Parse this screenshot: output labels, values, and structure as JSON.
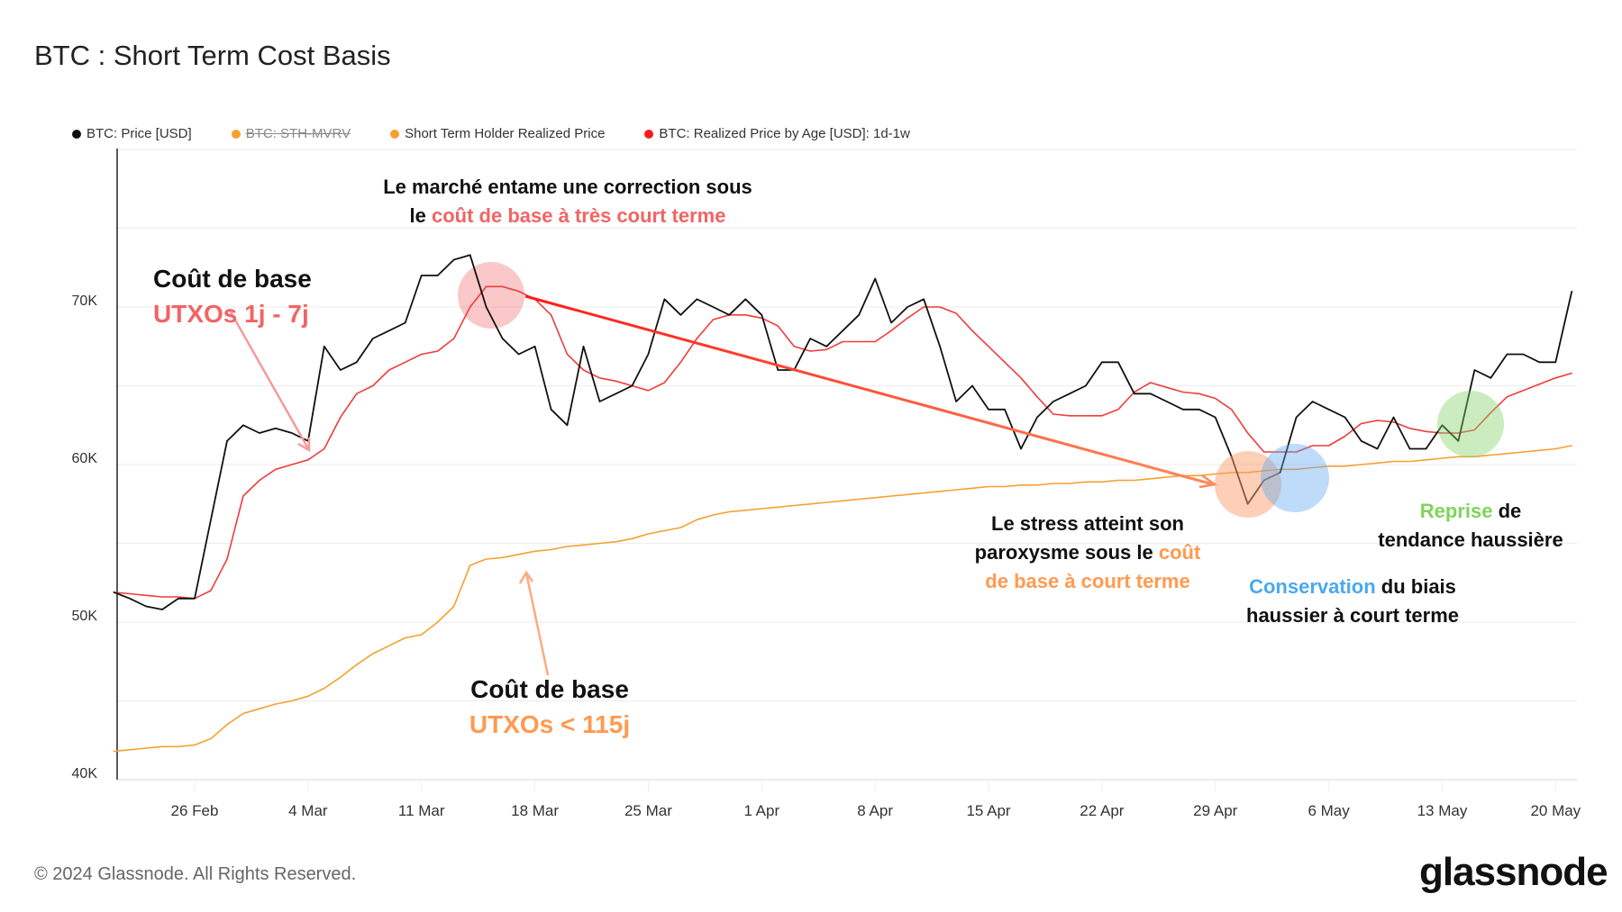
{
  "title": "BTC : Short Term Cost Basis",
  "legend": [
    {
      "label": "BTC: Price [USD]",
      "color": "#111111",
      "active": true
    },
    {
      "label": "BTC: STH-MVRV",
      "color": "#f5a030",
      "active": false
    },
    {
      "label": "Short Term Holder Realized Price",
      "color": "#f5a030",
      "active": true
    },
    {
      "label": "BTC: Realized Price by Age [USD]: 1d-1w",
      "color": "#ff1a1a",
      "active": true
    }
  ],
  "annotations": {
    "top_line1": "Le marché entame une correction sous",
    "top_line2_a": "le ",
    "top_line2_b": "coût de base à très court terme",
    "left_title": "Coût de base",
    "left_sub": "UTXOs 1j - 7j",
    "bottom_title": "Coût de base",
    "bottom_sub": "UTXOs < 115j",
    "stress_l1": "Le stress atteint son",
    "stress_l2_a": "paroxysme sous le ",
    "stress_l2_b": "coût",
    "stress_l3": "de base à court terme",
    "cons_a": "Conservation",
    "cons_b": " du biais",
    "cons_l2": "haussier à court terme",
    "rep_a": "Reprise",
    "rep_b": " de",
    "rep_l2": "tendance haussière",
    "colors": {
      "red": "#f26464",
      "orange": "#ff9a50",
      "blue": "#4aa8f0",
      "green": "#7fd35a"
    }
  },
  "footer": "© 2024 Glassnode. All Rights Reserved.",
  "logo": "glassnode",
  "chart_data": {
    "type": "line",
    "title": "BTC : Short Term Cost Basis",
    "ylim": [
      40000,
      80000
    ],
    "yticks": [
      "40K",
      "50K",
      "60K",
      "70K"
    ],
    "xticks": [
      "26 Feb",
      "4 Mar",
      "11 Mar",
      "18 Mar",
      "25 Mar",
      "1 Apr",
      "8 Apr",
      "15 Apr",
      "22 Apr",
      "29 Apr",
      "6 May",
      "13 May",
      "20 May"
    ],
    "grid": true,
    "legend_position": "top-left",
    "x": [
      "Feb 21",
      "Feb 22",
      "Feb 23",
      "Feb 24",
      "Feb 25",
      "Feb 26",
      "Feb 27",
      "Feb 28",
      "Feb 29",
      "Mar 1",
      "Mar 2",
      "Mar 3",
      "Mar 4",
      "Mar 5",
      "Mar 6",
      "Mar 7",
      "Mar 8",
      "Mar 9",
      "Mar 10",
      "Mar 11",
      "Mar 12",
      "Mar 13",
      "Mar 14",
      "Mar 15",
      "Mar 16",
      "Mar 17",
      "Mar 18",
      "Mar 19",
      "Mar 20",
      "Mar 21",
      "Mar 22",
      "Mar 23",
      "Mar 24",
      "Mar 25",
      "Mar 26",
      "Mar 27",
      "Mar 28",
      "Mar 29",
      "Mar 30",
      "Mar 31",
      "Apr 1",
      "Apr 2",
      "Apr 3",
      "Apr 4",
      "Apr 5",
      "Apr 6",
      "Apr 7",
      "Apr 8",
      "Apr 9",
      "Apr 10",
      "Apr 11",
      "Apr 12",
      "Apr 13",
      "Apr 14",
      "Apr 15",
      "Apr 16",
      "Apr 17",
      "Apr 18",
      "Apr 19",
      "Apr 20",
      "Apr 21",
      "Apr 22",
      "Apr 23",
      "Apr 24",
      "Apr 25",
      "Apr 26",
      "Apr 27",
      "Apr 28",
      "Apr 29",
      "Apr 30",
      "May 1",
      "May 2",
      "May 3",
      "May 4",
      "May 5",
      "May 6",
      "May 7",
      "May 8",
      "May 9",
      "May 10",
      "May 11",
      "May 12",
      "May 13",
      "May 14",
      "May 15",
      "May 16",
      "May 17",
      "May 18",
      "May 19",
      "May 20",
      "May 21"
    ],
    "series": [
      {
        "name": "Short Term Holder Realized Price",
        "color": "#f5a030",
        "values": [
          41800,
          41900,
          42000,
          42100,
          42100,
          42200,
          42600,
          43500,
          44200,
          44500,
          44800,
          45000,
          45300,
          45800,
          46500,
          47300,
          48000,
          48500,
          49000,
          49200,
          50000,
          51000,
          53600,
          54000,
          54100,
          54300,
          54500,
          54600,
          54800,
          54900,
          55000,
          55100,
          55300,
          55600,
          55800,
          56000,
          56500,
          56800,
          57000,
          57100,
          57200,
          57300,
          57400,
          57500,
          57600,
          57700,
          57800,
          57900,
          58000,
          58100,
          58200,
          58300,
          58400,
          58500,
          58600,
          58600,
          58700,
          58700,
          58800,
          58800,
          58900,
          58900,
          59000,
          59000,
          59100,
          59200,
          59300,
          59300,
          59400,
          59500,
          59500,
          59600,
          59700,
          59700,
          59800,
          59900,
          59900,
          60000,
          60100,
          60200,
          60200,
          60300,
          60400,
          60500,
          60500,
          60600,
          60700,
          60800,
          60900,
          61000,
          61200
        ]
      },
      {
        "name": "BTC: Realized Price by Age [USD]: 1d-1w",
        "color": "#f03c3c",
        "values": [
          51900,
          51800,
          51700,
          51600,
          51600,
          51500,
          52000,
          54000,
          58000,
          59000,
          59700,
          60000,
          60300,
          61000,
          63000,
          64500,
          65000,
          66000,
          66500,
          67000,
          67200,
          68000,
          70000,
          71300,
          71300,
          71000,
          70500,
          69500,
          67000,
          66000,
          65500,
          65300,
          65000,
          64700,
          65200,
          66500,
          68000,
          69200,
          69500,
          69500,
          69300,
          68800,
          67500,
          67200,
          67300,
          67800,
          67800,
          67800,
          68500,
          69300,
          70000,
          70000,
          69600,
          68500,
          67500,
          66500,
          65500,
          64300,
          63200,
          63100,
          63100,
          63100,
          63500,
          64600,
          65200,
          64900,
          64600,
          64500,
          64200,
          63500,
          62000,
          60800,
          60800,
          60800,
          61200,
          61200,
          61800,
          62600,
          62800,
          62700,
          62300,
          62100,
          62000,
          62000,
          62200,
          63300,
          64300,
          64700,
          65100,
          65500,
          65800
        ]
      },
      {
        "name": "BTC: Price [USD]",
        "color": "#111111",
        "values": [
          51900,
          51500,
          51000,
          50800,
          51500,
          51500,
          56500,
          61500,
          62500,
          62000,
          62300,
          62000,
          61500,
          67500,
          66000,
          66500,
          68000,
          68500,
          69000,
          72000,
          72000,
          73000,
          73300,
          70000,
          68000,
          67000,
          67500,
          63500,
          62500,
          67500,
          64000,
          64500,
          65000,
          67000,
          70500,
          69500,
          70500,
          70000,
          69500,
          70500,
          69500,
          66000,
          66000,
          68000,
          67500,
          68500,
          69500,
          71800,
          69000,
          70000,
          70500,
          67500,
          64000,
          65000,
          63500,
          63500,
          61000,
          63000,
          64000,
          64500,
          65000,
          66500,
          66500,
          64500,
          64500,
          64000,
          63500,
          63500,
          63000,
          60500,
          57500,
          59000,
          59500,
          63000,
          64000,
          63500,
          63000,
          61500,
          61000,
          63000,
          61000,
          61000,
          62500,
          61500,
          66000,
          65500,
          67000,
          67000,
          66500,
          66500,
          71000
        ]
      }
    ]
  }
}
